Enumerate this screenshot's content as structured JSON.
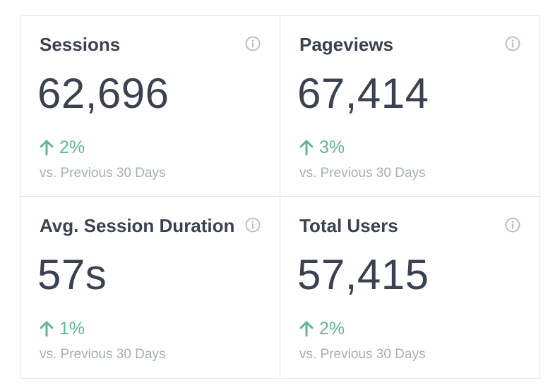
{
  "cards": [
    {
      "title": "Sessions",
      "value": "62,696",
      "change": "2%",
      "comparison": "vs. Previous 30 Days",
      "info_icon": "info-icon",
      "trend_icon": "arrow-up-icon"
    },
    {
      "title": "Pageviews",
      "value": "67,414",
      "change": "3%",
      "comparison": "vs. Previous 30 Days",
      "info_icon": "info-icon",
      "trend_icon": "arrow-up-icon"
    },
    {
      "title": "Avg. Session Duration",
      "value": "57s",
      "change": "1%",
      "comparison": "vs. Previous 30 Days",
      "info_icon": "info-icon",
      "trend_icon": "arrow-up-icon"
    },
    {
      "title": "Total Users",
      "value": "57,415",
      "change": "2%",
      "comparison": "vs. Previous 30 Days",
      "info_icon": "info-icon",
      "trend_icon": "arrow-up-icon"
    }
  ],
  "colors": {
    "title": "#3b4150",
    "value": "#3b4150",
    "positive": "#5fb791",
    "muted": "#a8adb7",
    "border": "#dfe3e8",
    "icon": "#b9bec7"
  }
}
